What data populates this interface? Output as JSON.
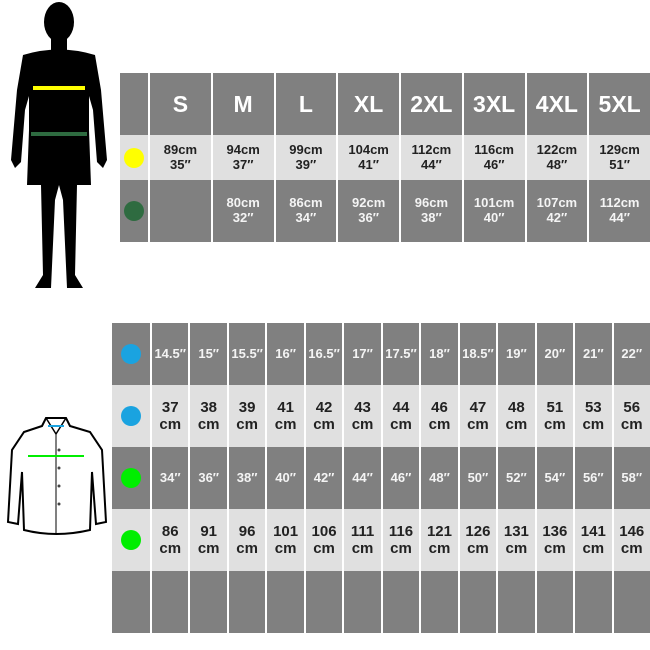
{
  "top_table": {
    "sizes": [
      "S",
      "M",
      "L",
      "XL",
      "2XL",
      "3XL",
      "4XL",
      "5XL"
    ],
    "rows": [
      {
        "marker_color": "#ffff00",
        "values": [
          [
            "89cm",
            "35″"
          ],
          [
            "94cm",
            "37″"
          ],
          [
            "99cm",
            "39″"
          ],
          [
            "104cm",
            "41″"
          ],
          [
            "112cm",
            "44″"
          ],
          [
            "116cm",
            "46″"
          ],
          [
            "122cm",
            "48″"
          ],
          [
            "129cm",
            "51″"
          ]
        ]
      },
      {
        "marker_color": "#2e6b40",
        "values": [
          [
            "",
            ""
          ],
          [
            "80cm",
            "32″"
          ],
          [
            "86cm",
            "34″"
          ],
          [
            "92cm",
            "36″"
          ],
          [
            "96cm",
            "38″"
          ],
          [
            "101cm",
            "40″"
          ],
          [
            "107cm",
            "42″"
          ],
          [
            "112cm",
            "44″"
          ]
        ]
      }
    ],
    "figure_icon": "man-silhouette-icon"
  },
  "bottom_table": {
    "figure_icon": "shirt-icon",
    "rows": [
      {
        "marker_color": "#1aa3e0",
        "style": "dark",
        "values": [
          "14.5″",
          "15″",
          "15.5″",
          "16″",
          "16.5″",
          "17″",
          "17.5″",
          "18″",
          "18.5″",
          "19″",
          "20″",
          "21″",
          "22″"
        ]
      },
      {
        "marker_color": "#1aa3e0",
        "style": "light",
        "values": [
          [
            "37",
            "cm"
          ],
          [
            "38",
            "cm"
          ],
          [
            "39",
            "cm"
          ],
          [
            "41",
            "cm"
          ],
          [
            "42",
            "cm"
          ],
          [
            "43",
            "cm"
          ],
          [
            "44",
            "cm"
          ],
          [
            "46",
            "cm"
          ],
          [
            "47",
            "cm"
          ],
          [
            "48",
            "cm"
          ],
          [
            "51",
            "cm"
          ],
          [
            "53",
            "cm"
          ],
          [
            "56",
            "cm"
          ]
        ]
      },
      {
        "marker_color": "#00ee00",
        "style": "dark",
        "values": [
          "34″",
          "36″",
          "38″",
          "40″",
          "42″",
          "44″",
          "46″",
          "48″",
          "50″",
          "52″",
          "54″",
          "56″",
          "58″"
        ]
      },
      {
        "marker_color": "#00ee00",
        "style": "light",
        "values": [
          [
            "86",
            "cm"
          ],
          [
            "91",
            "cm"
          ],
          [
            "96",
            "cm"
          ],
          [
            "101",
            "cm"
          ],
          [
            "106",
            "cm"
          ],
          [
            "111",
            "cm"
          ],
          [
            "116",
            "cm"
          ],
          [
            "121",
            "cm"
          ],
          [
            "126",
            "cm"
          ],
          [
            "131",
            "cm"
          ],
          [
            "136",
            "cm"
          ],
          [
            "141",
            "cm"
          ],
          [
            "146",
            "cm"
          ]
        ]
      }
    ]
  }
}
